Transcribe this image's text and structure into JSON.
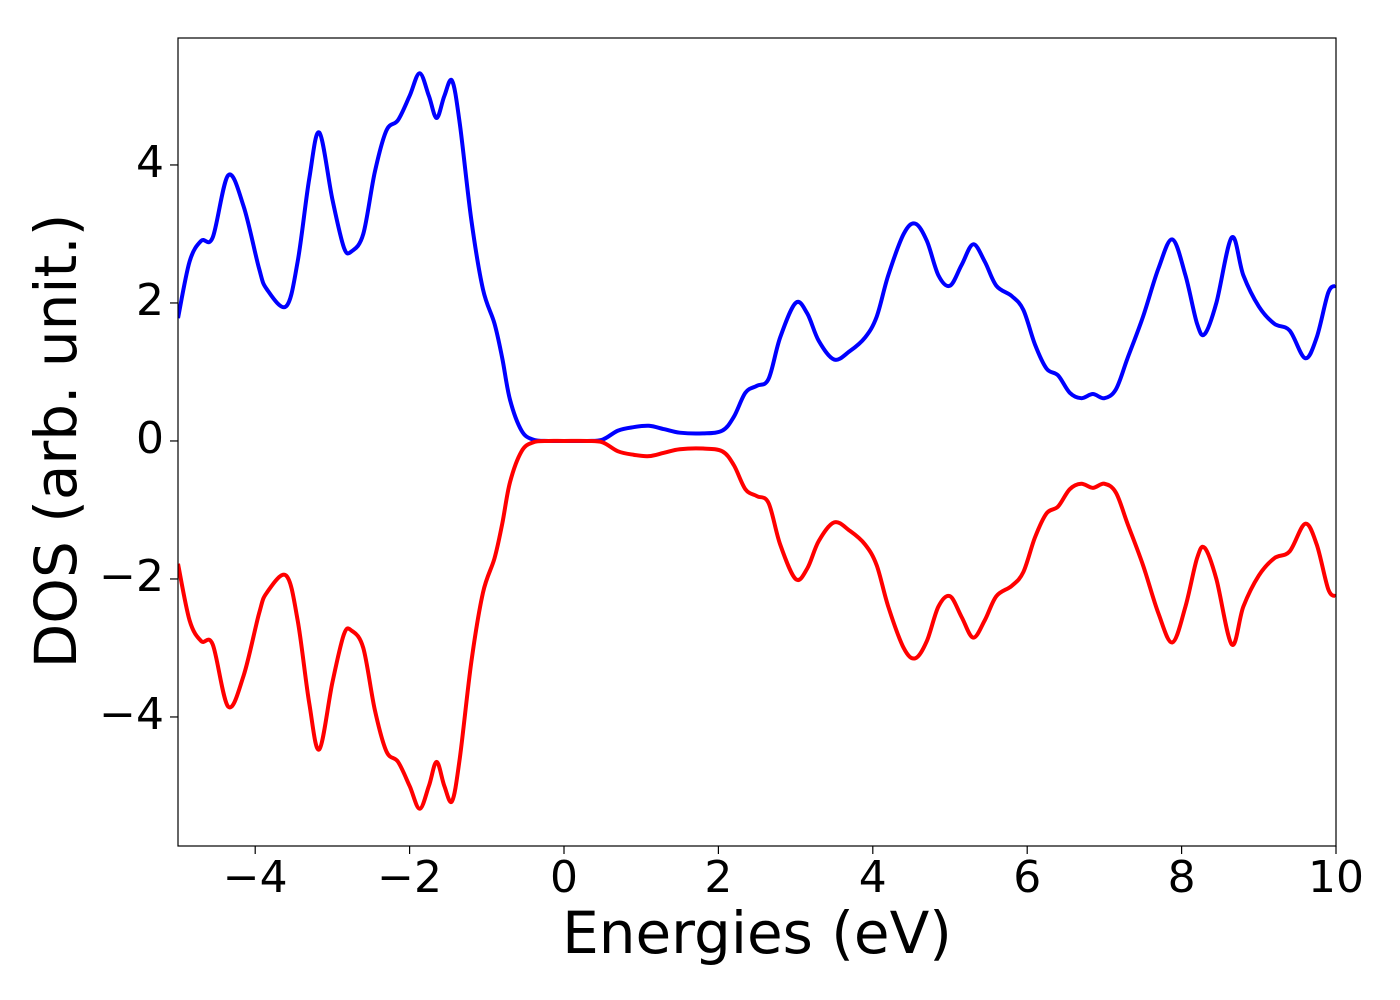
{
  "chart_data": {
    "type": "line",
    "x_label": "Energies (eV)",
    "y_label": "DOS (arb. unit.)",
    "xlim": [
      -5,
      10
    ],
    "ylim": [
      -5.87,
      5.84
    ],
    "xticks": [
      {
        "value": -4,
        "label": "−4"
      },
      {
        "value": -2,
        "label": "−2"
      },
      0,
      2,
      4,
      6,
      8,
      10
    ],
    "yticks": [
      {
        "value": -4,
        "label": "−4"
      },
      {
        "value": -2,
        "label": "−2"
      },
      0,
      2,
      4
    ],
    "grid": false,
    "x": [
      -5,
      -4.85,
      -4.7,
      -4.55,
      -4.35,
      -4.15,
      -3.95,
      -3.85,
      -3.6,
      -3.45,
      -3.3,
      -3.17,
      -3.0,
      -2.85,
      -2.75,
      -2.6,
      -2.45,
      -2.3,
      -2.15,
      -2.0,
      -1.87,
      -1.75,
      -1.65,
      -1.55,
      -1.45,
      -1.35,
      -1.2,
      -1.05,
      -0.9,
      -0.8,
      -0.7,
      -0.55,
      -0.4,
      -0.2,
      0,
      0.3,
      0.5,
      0.7,
      0.9,
      1.1,
      1.3,
      1.5,
      1.8,
      2.05,
      2.2,
      2.35,
      2.5,
      2.65,
      2.8,
      3.0,
      3.15,
      3.3,
      3.5,
      3.7,
      3.9,
      4.05,
      4.2,
      4.4,
      4.55,
      4.7,
      4.85,
      5.0,
      5.15,
      5.3,
      5.45,
      5.6,
      5.8,
      5.95,
      6.1,
      6.25,
      6.4,
      6.55,
      6.7,
      6.85,
      7.0,
      7.15,
      7.3,
      7.5,
      7.7,
      7.88,
      8.05,
      8.2,
      8.3,
      8.45,
      8.65,
      8.8,
      9.0,
      9.2,
      9.4,
      9.6,
      9.75,
      9.9,
      10
    ],
    "series": [
      {
        "color": "#0000ff",
        "values": [
          1.78,
          2.6,
          2.9,
          2.95,
          3.85,
          3.4,
          2.5,
          2.2,
          1.95,
          2.6,
          3.8,
          4.47,
          3.5,
          2.8,
          2.75,
          3.0,
          3.9,
          4.5,
          4.65,
          5.0,
          5.33,
          5.0,
          4.68,
          5.0,
          5.22,
          4.6,
          3.2,
          2.2,
          1.7,
          1.2,
          0.6,
          0.15,
          0.02,
          0,
          0,
          0,
          0.02,
          0.15,
          0.2,
          0.22,
          0.17,
          0.12,
          0.11,
          0.15,
          0.35,
          0.7,
          0.8,
          0.9,
          1.5,
          2.0,
          1.85,
          1.45,
          1.18,
          1.3,
          1.5,
          1.8,
          2.4,
          3.0,
          3.15,
          2.9,
          2.4,
          2.25,
          2.55,
          2.85,
          2.6,
          2.25,
          2.1,
          1.9,
          1.4,
          1.05,
          0.95,
          0.7,
          0.62,
          0.68,
          0.62,
          0.75,
          1.2,
          1.8,
          2.5,
          2.92,
          2.4,
          1.7,
          1.55,
          2.0,
          2.95,
          2.4,
          1.95,
          1.7,
          1.6,
          1.2,
          1.5,
          2.15,
          2.25
        ]
      },
      {
        "color": "#ff0000",
        "values": [
          -1.78,
          -2.6,
          -2.9,
          -2.95,
          -3.85,
          -3.4,
          -2.5,
          -2.2,
          -1.95,
          -2.6,
          -3.8,
          -4.47,
          -3.5,
          -2.8,
          -2.75,
          -3.0,
          -3.9,
          -4.5,
          -4.65,
          -5.0,
          -5.33,
          -5.0,
          -4.65,
          -5.0,
          -5.22,
          -4.6,
          -3.2,
          -2.2,
          -1.7,
          -1.2,
          -0.6,
          -0.15,
          -0.02,
          0,
          0,
          0,
          -0.02,
          -0.15,
          -0.2,
          -0.22,
          -0.17,
          -0.12,
          -0.11,
          -0.15,
          -0.35,
          -0.7,
          -0.8,
          -0.9,
          -1.5,
          -2.0,
          -1.85,
          -1.45,
          -1.18,
          -1.3,
          -1.5,
          -1.8,
          -2.4,
          -3.0,
          -3.15,
          -2.9,
          -2.4,
          -2.25,
          -2.55,
          -2.85,
          -2.6,
          -2.25,
          -2.1,
          -1.9,
          -1.4,
          -1.05,
          -0.95,
          -0.7,
          -0.62,
          -0.68,
          -0.62,
          -0.75,
          -1.2,
          -1.8,
          -2.5,
          -2.92,
          -2.4,
          -1.7,
          -1.55,
          -2.0,
          -2.95,
          -2.4,
          -1.95,
          -1.7,
          -1.6,
          -1.2,
          -1.5,
          -2.15,
          -2.25
        ]
      }
    ]
  }
}
